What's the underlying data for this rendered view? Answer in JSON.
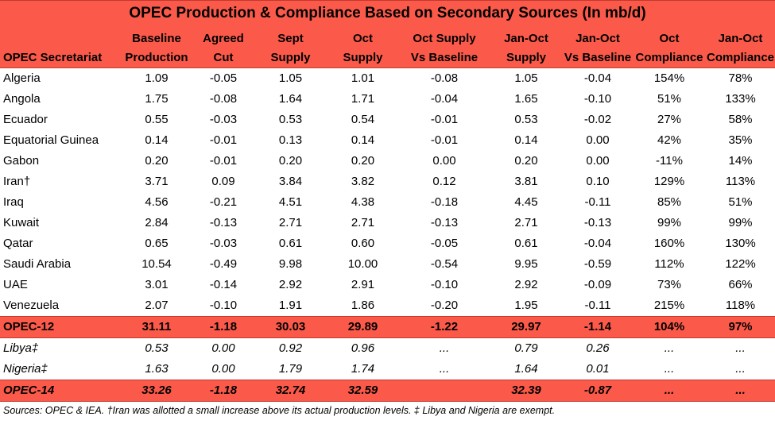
{
  "title": "OPEC Production & Compliance Based on Secondary Sources (In mb/d)",
  "headers": [
    [
      "",
      "OPEC Secretariat"
    ],
    [
      "Baseline",
      "Production"
    ],
    [
      "Agreed",
      "Cut"
    ],
    [
      "Sept",
      "Supply"
    ],
    [
      "Oct",
      "Supply"
    ],
    [
      "Oct Supply",
      "Vs Baseline"
    ],
    [
      "Jan-Oct",
      "Supply"
    ],
    [
      "Jan-Oct",
      "Vs Baseline"
    ],
    [
      "Oct",
      "Compliance"
    ],
    [
      "Jan-Oct",
      "Compliance"
    ]
  ],
  "rows": [
    [
      "Algeria",
      "1.09",
      "-0.05",
      "1.05",
      "1.01",
      "-0.08",
      "1.05",
      "-0.04",
      "154%",
      "78%"
    ],
    [
      "Angola",
      "1.75",
      "-0.08",
      "1.64",
      "1.71",
      "-0.04",
      "1.65",
      "-0.10",
      "51%",
      "133%"
    ],
    [
      "Ecuador",
      "0.55",
      "-0.03",
      "0.53",
      "0.54",
      "-0.01",
      "0.53",
      "-0.02",
      "27%",
      "58%"
    ],
    [
      "Equatorial Guinea",
      "0.14",
      "-0.01",
      "0.13",
      "0.14",
      "-0.01",
      "0.14",
      "0.00",
      "42%",
      "35%"
    ],
    [
      "Gabon",
      "0.20",
      "-0.01",
      "0.20",
      "0.20",
      "0.00",
      "0.20",
      "0.00",
      "-11%",
      "14%"
    ],
    [
      "Iran†",
      "3.71",
      "0.09",
      "3.84",
      "3.82",
      "0.12",
      "3.81",
      "0.10",
      "129%",
      "113%"
    ],
    [
      "Iraq",
      "4.56",
      "-0.21",
      "4.51",
      "4.38",
      "-0.18",
      "4.45",
      "-0.11",
      "85%",
      "51%"
    ],
    [
      "Kuwait",
      "2.84",
      "-0.13",
      "2.71",
      "2.71",
      "-0.13",
      "2.71",
      "-0.13",
      "99%",
      "99%"
    ],
    [
      "Qatar",
      "0.65",
      "-0.03",
      "0.61",
      "0.60",
      "-0.05",
      "0.61",
      "-0.04",
      "160%",
      "130%"
    ],
    [
      "Saudi Arabia",
      "10.54",
      "-0.49",
      "9.98",
      "10.00",
      "-0.54",
      "9.95",
      "-0.59",
      "112%",
      "122%"
    ],
    [
      "UAE",
      "3.01",
      "-0.14",
      "2.92",
      "2.91",
      "-0.10",
      "2.92",
      "-0.09",
      "73%",
      "66%"
    ],
    [
      "Venezuela",
      "2.07",
      "-0.10",
      "1.91",
      "1.86",
      "-0.20",
      "1.95",
      "-0.11",
      "215%",
      "118%"
    ]
  ],
  "opec12": [
    "OPEC-12",
    "31.11",
    "-1.18",
    "30.03",
    "29.89",
    "-1.22",
    "29.97",
    "-1.14",
    "104%",
    "97%"
  ],
  "exempt": [
    [
      "Libya‡",
      "0.53",
      "0.00",
      "0.92",
      "0.96",
      "...",
      "0.79",
      "0.26",
      "...",
      "..."
    ],
    [
      "Nigeria‡",
      "1.63",
      "0.00",
      "1.79",
      "1.74",
      "...",
      "1.64",
      "0.01",
      "...",
      "..."
    ]
  ],
  "opec14": [
    "OPEC-14",
    "33.26",
    "-1.18",
    "32.74",
    "32.59",
    "",
    "32.39",
    "-0.87",
    "...",
    "..."
  ],
  "footnote": "Sources: OPEC & IEA. †Iran was allotted a small increase above its actual production levels. ‡ Libya and Nigeria are exempt.",
  "colors": {
    "header_bg": "#fb5a4a",
    "border": "#c23a2e",
    "text": "#000000"
  }
}
